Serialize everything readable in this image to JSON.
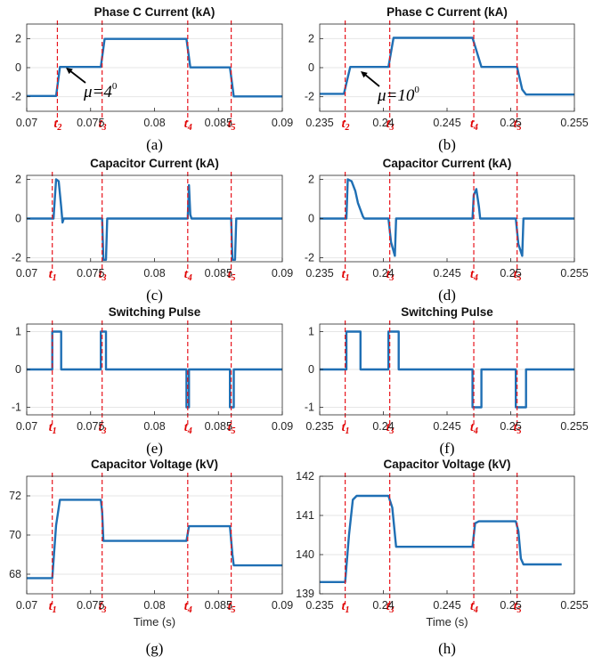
{
  "figure_labels": [
    "(a)",
    "(b)",
    "(c)",
    "(d)",
    "(e)",
    "(f)",
    "(g)",
    "(h)"
  ],
  "colors": {
    "series": "#1f6fb4",
    "marker": "#e8141c",
    "grid": "#e6e6e6",
    "axes": "#262626"
  },
  "annotations": [
    {
      "panel": "a",
      "mu_text": "μ=4",
      "degree": "0"
    },
    {
      "panel": "b",
      "mu_text": "μ=10",
      "degree": "0"
    }
  ],
  "chart_data": [
    {
      "id": "a",
      "type": "line",
      "title": "Phase C Current (kA)",
      "xlabel": "",
      "ylabel": "",
      "xlim": [
        0.07,
        0.09
      ],
      "ylim": [
        -3,
        3
      ],
      "xticks": [
        "0.07",
        "0.075",
        "0.08",
        "0.085",
        "0.09"
      ],
      "xtick_values": [
        0.07,
        0.075,
        0.08,
        0.085,
        0.09
      ],
      "yticks": [
        "2",
        "0",
        "-2"
      ],
      "ytick_values": [
        2,
        0,
        -2
      ],
      "grid": true,
      "markers": [
        {
          "label": "t",
          "sub": "2",
          "x": 0.0724
        },
        {
          "label": "t",
          "sub": "3",
          "x": 0.0759
        },
        {
          "label": "t",
          "sub": "4",
          "x": 0.0826
        },
        {
          "label": "t",
          "sub": "5",
          "x": 0.086
        }
      ],
      "series": [
        {
          "x": [
            0.07,
            0.0723,
            0.0726,
            0.0758,
            0.0761,
            0.0825,
            0.0828,
            0.0859,
            0.0862,
            0.09
          ],
          "y": [
            -1.95,
            -1.95,
            0.05,
            0.05,
            1.98,
            1.98,
            0.02,
            0.02,
            -1.98,
            -1.98
          ]
        }
      ]
    },
    {
      "id": "b",
      "type": "line",
      "title": "Phase C Current (kA)",
      "xlabel": "",
      "ylabel": "",
      "xlim": [
        0.235,
        0.255
      ],
      "ylim": [
        -3,
        3
      ],
      "xticks": [
        "0.235",
        "0.24",
        "0.245",
        "0.25",
        "0.255"
      ],
      "xtick_values": [
        0.235,
        0.24,
        0.245,
        0.25,
        0.255
      ],
      "yticks": [
        "2",
        "0",
        "-2"
      ],
      "ytick_values": [
        2,
        0,
        -2
      ],
      "grid": true,
      "markers": [
        {
          "label": "t",
          "sub": "2",
          "x": 0.237
        },
        {
          "label": "t",
          "sub": "3",
          "x": 0.2405
        },
        {
          "label": "t",
          "sub": "4",
          "x": 0.2471
        },
        {
          "label": "t",
          "sub": "5",
          "x": 0.2505
        }
      ],
      "series": [
        {
          "x": [
            0.235,
            0.2369,
            0.2374,
            0.2404,
            0.2408,
            0.247,
            0.2477,
            0.2505,
            0.2509,
            0.2512,
            0.255
          ],
          "y": [
            -1.8,
            -1.8,
            0.05,
            0.05,
            2.05,
            2.05,
            0.05,
            0.05,
            -1.5,
            -1.85,
            -1.85
          ]
        }
      ]
    },
    {
      "id": "c",
      "type": "line",
      "title": "Capacitor Current (kA)",
      "xlabel": "",
      "ylabel": "",
      "xlim": [
        0.07,
        0.09
      ],
      "ylim": [
        -2.2,
        2.2
      ],
      "xticks": [
        "0.07",
        "0.075",
        "0.08",
        "0.085",
        "0.09"
      ],
      "xtick_values": [
        0.07,
        0.075,
        0.08,
        0.085,
        0.09
      ],
      "yticks": [
        "2",
        "0",
        "-2"
      ],
      "ytick_values": [
        2,
        0,
        -2
      ],
      "grid": true,
      "markers": [
        {
          "label": "t",
          "sub": "1",
          "x": 0.072
        },
        {
          "label": "t",
          "sub": "3",
          "x": 0.0759
        },
        {
          "label": "t",
          "sub": "4",
          "x": 0.0826
        },
        {
          "label": "t",
          "sub": "5",
          "x": 0.086
        }
      ],
      "series": [
        {
          "x": [
            0.07,
            0.0721,
            0.0723,
            0.0725,
            0.0727,
            0.0728,
            0.0729,
            0.0759,
            0.076,
            0.0762,
            0.0763,
            0.0826,
            0.0827,
            0.0828,
            0.0829,
            0.086,
            0.0861,
            0.0863,
            0.0864,
            0.09
          ],
          "y": [
            0,
            0,
            2.0,
            1.9,
            0.6,
            -0.2,
            0,
            0,
            -2.1,
            -2.1,
            0,
            0,
            1.7,
            0.2,
            0,
            0,
            -2.1,
            -2.1,
            0,
            0
          ]
        }
      ]
    },
    {
      "id": "d",
      "type": "line",
      "title": "Capacitor Current (kA)",
      "xlabel": "",
      "ylabel": "",
      "xlim": [
        0.235,
        0.255
      ],
      "ylim": [
        -2.2,
        2.2
      ],
      "xticks": [
        "0.235",
        "0.24",
        "0.245",
        "0.25",
        "0.255"
      ],
      "xtick_values": [
        0.235,
        0.24,
        0.245,
        0.25,
        0.255
      ],
      "yticks": [
        "2",
        "0",
        "-2"
      ],
      "ytick_values": [
        2,
        0,
        -2
      ],
      "grid": true,
      "markers": [
        {
          "label": "t",
          "sub": "1",
          "x": 0.237
        },
        {
          "label": "t",
          "sub": "3",
          "x": 0.2405
        },
        {
          "label": "t",
          "sub": "4",
          "x": 0.2471
        },
        {
          "label": "t",
          "sub": "5",
          "x": 0.2505
        }
      ],
      "series": [
        {
          "x": [
            0.235,
            0.2371,
            0.2372,
            0.2375,
            0.2378,
            0.238,
            0.2384,
            0.2385,
            0.2404,
            0.2406,
            0.2409,
            0.241,
            0.247,
            0.2471,
            0.2473,
            0.2475,
            0.2476,
            0.2504,
            0.2506,
            0.2509,
            0.251,
            0.255
          ],
          "y": [
            0,
            0,
            2.0,
            1.9,
            1.4,
            0.8,
            0.1,
            0,
            0,
            -1.2,
            -1.9,
            0,
            0,
            1.2,
            1.5,
            0.6,
            0,
            0,
            -1.3,
            -1.9,
            0,
            0
          ]
        }
      ]
    },
    {
      "id": "e",
      "type": "line",
      "title": "Switching Pulse",
      "xlabel": "",
      "ylabel": "",
      "xlim": [
        0.07,
        0.09
      ],
      "ylim": [
        -1.2,
        1.2
      ],
      "xticks": [
        "0.07",
        "0.075",
        "0.08",
        "0.085",
        "0.09"
      ],
      "xtick_values": [
        0.07,
        0.075,
        0.08,
        0.085,
        0.09
      ],
      "yticks": [
        "1",
        "0",
        "-1"
      ],
      "ytick_values": [
        1,
        0,
        -1
      ],
      "grid": true,
      "markers": [
        {
          "label": "t",
          "sub": "1",
          "x": 0.072
        },
        {
          "label": "t",
          "sub": "3",
          "x": 0.0759
        },
        {
          "label": "t",
          "sub": "4",
          "x": 0.0826
        },
        {
          "label": "t",
          "sub": "5",
          "x": 0.086
        }
      ],
      "series": [
        {
          "x": [
            0.07,
            0.072,
            0.072,
            0.0727,
            0.0727,
            0.0758,
            0.0758,
            0.0762,
            0.0762,
            0.0825,
            0.0825,
            0.0827,
            0.0827,
            0.0859,
            0.0859,
            0.0862,
            0.0862,
            0.09
          ],
          "y": [
            0,
            0,
            1,
            1,
            0,
            0,
            1,
            1,
            0,
            0,
            -1,
            -1,
            0,
            0,
            -1,
            -1,
            0,
            0
          ]
        }
      ]
    },
    {
      "id": "f",
      "type": "line",
      "title": "Switching Pulse",
      "xlabel": "",
      "ylabel": "",
      "xlim": [
        0.235,
        0.255
      ],
      "ylim": [
        -1.2,
        1.2
      ],
      "xticks": [
        "0.235",
        "0.24",
        "0.245",
        "0.25",
        "0.255"
      ],
      "xtick_values": [
        0.235,
        0.24,
        0.245,
        0.25,
        0.255
      ],
      "yticks": [
        "1",
        "0",
        "-1"
      ],
      "ytick_values": [
        1,
        0,
        -1
      ],
      "grid": true,
      "markers": [
        {
          "label": "t",
          "sub": "1",
          "x": 0.237
        },
        {
          "label": "t",
          "sub": "3",
          "x": 0.2405
        },
        {
          "label": "t",
          "sub": "4",
          "x": 0.2471
        },
        {
          "label": "t",
          "sub": "5",
          "x": 0.2505
        }
      ],
      "series": [
        {
          "x": [
            0.235,
            0.2371,
            0.2371,
            0.2382,
            0.2382,
            0.2404,
            0.2404,
            0.2412,
            0.2412,
            0.247,
            0.247,
            0.2477,
            0.2477,
            0.2504,
            0.2504,
            0.2512,
            0.2512,
            0.255
          ],
          "y": [
            0,
            0,
            1,
            1,
            0,
            0,
            1,
            1,
            0,
            0,
            -1,
            -1,
            0,
            0,
            -1,
            -1,
            0,
            0
          ]
        }
      ]
    },
    {
      "id": "g",
      "type": "line",
      "title": "Capacitor Voltage (kV)",
      "xlabel": "Time (s)",
      "ylabel": "",
      "xlim": [
        0.07,
        0.09
      ],
      "ylim": [
        67,
        73
      ],
      "xticks": [
        "0.07",
        "0.075",
        "0.08",
        "0.085",
        "0.09"
      ],
      "xtick_values": [
        0.07,
        0.075,
        0.08,
        0.085,
        0.09
      ],
      "yticks": [
        "72",
        "70",
        "68"
      ],
      "ytick_values": [
        72,
        70,
        68
      ],
      "grid": true,
      "markers": [
        {
          "label": "t",
          "sub": "1",
          "x": 0.072
        },
        {
          "label": "t",
          "sub": "3",
          "x": 0.0759
        },
        {
          "label": "t",
          "sub": "4",
          "x": 0.0826
        },
        {
          "label": "t",
          "sub": "5",
          "x": 0.086
        }
      ],
      "series": [
        {
          "x": [
            0.07,
            0.072,
            0.0723,
            0.0726,
            0.0758,
            0.0759,
            0.076,
            0.0825,
            0.0827,
            0.0859,
            0.0861,
            0.0862,
            0.09
          ],
          "y": [
            67.8,
            67.8,
            70.5,
            71.8,
            71.8,
            71.2,
            69.7,
            69.7,
            70.45,
            70.45,
            69.0,
            68.45,
            68.45
          ]
        }
      ]
    },
    {
      "id": "h",
      "type": "line",
      "title": "Capacitor Voltage (kV)",
      "xlabel": "Time (s)",
      "ylabel": "",
      "xlim": [
        0.235,
        0.255
      ],
      "ylim": [
        139,
        142
      ],
      "xticks": [
        "0.235",
        "0.24",
        "0.245",
        "0.25",
        "0.255"
      ],
      "xtick_values": [
        0.235,
        0.24,
        0.245,
        0.25,
        0.255
      ],
      "yticks": [
        "142",
        "141",
        "140",
        "139"
      ],
      "ytick_values": [
        142,
        141,
        140,
        139
      ],
      "grid": true,
      "markers": [
        {
          "label": "t",
          "sub": "1",
          "x": 0.237
        },
        {
          "label": "t",
          "sub": "3",
          "x": 0.2405
        },
        {
          "label": "t",
          "sub": "4",
          "x": 0.2471
        },
        {
          "label": "t",
          "sub": "5",
          "x": 0.2505
        }
      ],
      "series": [
        {
          "x": [
            0.235,
            0.237,
            0.2373,
            0.2376,
            0.2379,
            0.2404,
            0.2407,
            0.241,
            0.247,
            0.2472,
            0.2475,
            0.2504,
            0.2506,
            0.2508,
            0.251,
            0.254
          ],
          "y": [
            139.3,
            139.3,
            140.5,
            141.4,
            141.5,
            141.5,
            141.2,
            140.2,
            140.2,
            140.8,
            140.85,
            140.85,
            140.6,
            139.9,
            139.75,
            139.75
          ]
        }
      ]
    }
  ]
}
